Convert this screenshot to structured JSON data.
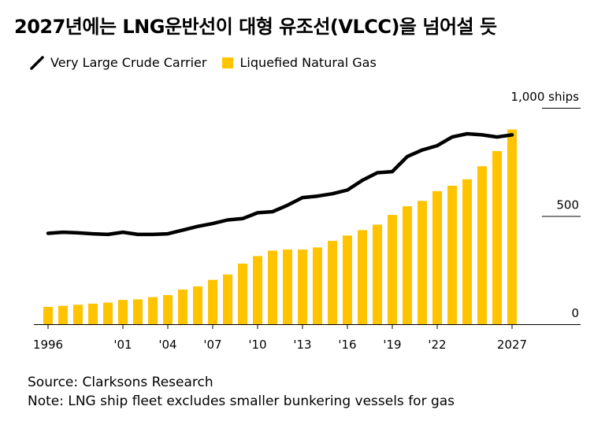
{
  "title": "2027년에는 LNG운반선이 대형 유조선(VLCC)을 넘어설 듯",
  "legend": {
    "line_label": "Very Large Crude Carrier",
    "bar_label": "Liquefied Natural Gas"
  },
  "footer": {
    "source": "Source: Clarksons Research",
    "note": "Note: LNG ship fleet excludes smaller bunkering vessels for gas"
  },
  "colors": {
    "line": "#000000",
    "bar": "#FFC300",
    "axis": "#000000"
  },
  "chart_data": {
    "type": "bar",
    "ylim": [
      0,
      1000
    ],
    "y_ticks": [
      {
        "value": 0,
        "label": "0"
      },
      {
        "value": 500,
        "label": "500"
      },
      {
        "value": 1000,
        "label": "1,000 ships"
      }
    ],
    "x_tick_labels": [
      {
        "year": 1996,
        "label": "1996"
      },
      {
        "year": 2001,
        "label": "'01"
      },
      {
        "year": 2004,
        "label": "'04"
      },
      {
        "year": 2007,
        "label": "'07"
      },
      {
        "year": 2010,
        "label": "'10"
      },
      {
        "year": 2013,
        "label": "'13"
      },
      {
        "year": 2016,
        "label": "'16"
      },
      {
        "year": 2019,
        "label": "'19"
      },
      {
        "year": 2022,
        "label": "'22"
      },
      {
        "year": 2027,
        "label": "2027"
      }
    ],
    "categories": [
      1996,
      1997,
      1998,
      1999,
      2000,
      2001,
      2002,
      2003,
      2004,
      2005,
      2006,
      2007,
      2008,
      2009,
      2010,
      2011,
      2012,
      2013,
      2014,
      2015,
      2016,
      2017,
      2018,
      2019,
      2020,
      2021,
      2022,
      2023,
      2024,
      2025,
      2026,
      2027
    ],
    "series": [
      {
        "name": "Liquefied Natural Gas",
        "type": "bar",
        "values": [
          80,
          85,
          90,
          95,
          100,
          112,
          115,
          125,
          135,
          160,
          175,
          205,
          230,
          280,
          315,
          340,
          345,
          345,
          355,
          385,
          410,
          435,
          460,
          505,
          545,
          570,
          615,
          640,
          670,
          730,
          800,
          900
        ]
      },
      {
        "name": "Very Large Crude Carrier",
        "type": "line",
        "values": [
          420,
          425,
          422,
          418,
          415,
          425,
          415,
          415,
          418,
          435,
          452,
          465,
          482,
          488,
          515,
          520,
          550,
          585,
          592,
          603,
          620,
          665,
          700,
          705,
          775,
          805,
          825,
          865,
          880,
          875,
          865,
          875
        ]
      }
    ]
  }
}
